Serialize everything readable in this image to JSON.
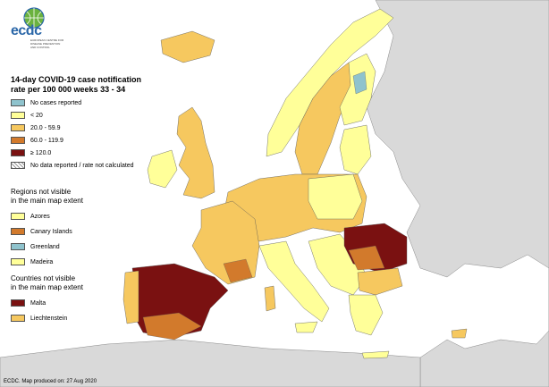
{
  "logo": {
    "text": "ecdc",
    "subtitle_line1": "EUROPEAN CENTRE FOR",
    "subtitle_line2": "DISEASE PREVENTION",
    "subtitle_line3": "AND CONTROL"
  },
  "legend": {
    "title_line1": "14-day COVID-19 case notification",
    "title_line2": "rate per 100 000 weeks 33 - 34",
    "items": [
      {
        "label": "No cases reported",
        "color": "#8fc3cd"
      },
      {
        "label": "< 20",
        "color": "#ffff99"
      },
      {
        "label": "20.0 - 59.9",
        "color": "#f6c85f"
      },
      {
        "label": "60.0 - 119.9",
        "color": "#d27a2c"
      },
      {
        "label": "≥ 120.0",
        "color": "#7a1111"
      },
      {
        "label": "No data reported / rate not calculated",
        "color": "hatch"
      }
    ]
  },
  "regions_not_visible": {
    "title_line1": "Regions not visible",
    "title_line2": "in the main map extent",
    "items": [
      {
        "label": "Azores",
        "color": "#ffff99"
      },
      {
        "label": "Canary Islands",
        "color": "#d27a2c"
      },
      {
        "label": "Greenland",
        "color": "#8fc3cd"
      },
      {
        "label": "Madeira",
        "color": "#ffff99"
      }
    ]
  },
  "countries_not_visible": {
    "title_line1": "Countries not visible",
    "title_line2": "in the main map extent",
    "items": [
      {
        "label": "Malta",
        "color": "#7a1111"
      },
      {
        "label": "Liechtenstein",
        "color": "#f6c85f"
      }
    ]
  },
  "footer": "ECDC. Map produced on: 27 Aug 2020",
  "colors": {
    "sea": "#ffffff",
    "non_eu_land": "#d9d9d9",
    "border": "#555555"
  }
}
